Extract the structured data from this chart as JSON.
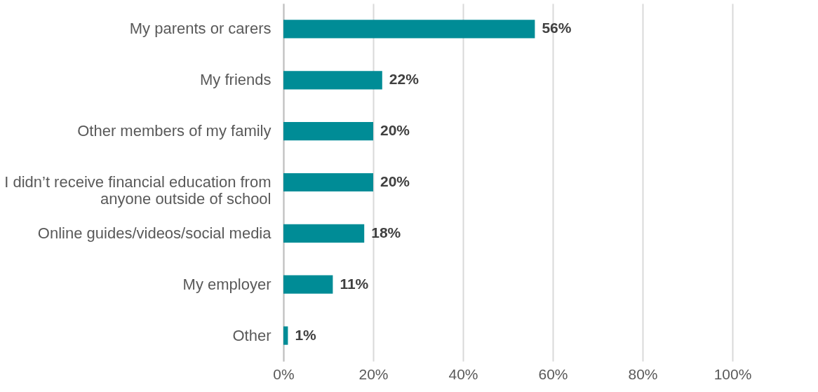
{
  "chart_data": {
    "type": "bar",
    "orientation": "horizontal",
    "categories": [
      "My parents or carers",
      "My friends",
      "Other members of my family",
      "I didn’t receive financial education from anyone outside of school",
      "Online guides/videos/social media",
      "My employer",
      "Other"
    ],
    "values": [
      56,
      22,
      20,
      20,
      18,
      11,
      1
    ],
    "value_labels": [
      "56%",
      "22%",
      "20%",
      "20%",
      "18%",
      "11%",
      "1%"
    ],
    "color": "#008c96",
    "xlim": [
      0,
      100
    ],
    "xticks": [
      {
        "value": 0,
        "label": "0%"
      },
      {
        "value": 20,
        "label": "20%"
      },
      {
        "value": 40,
        "label": "40%"
      },
      {
        "value": 60,
        "label": "60%"
      },
      {
        "value": 80,
        "label": "80%"
      },
      {
        "value": 100,
        "label": "100%"
      }
    ],
    "grid": "x"
  }
}
